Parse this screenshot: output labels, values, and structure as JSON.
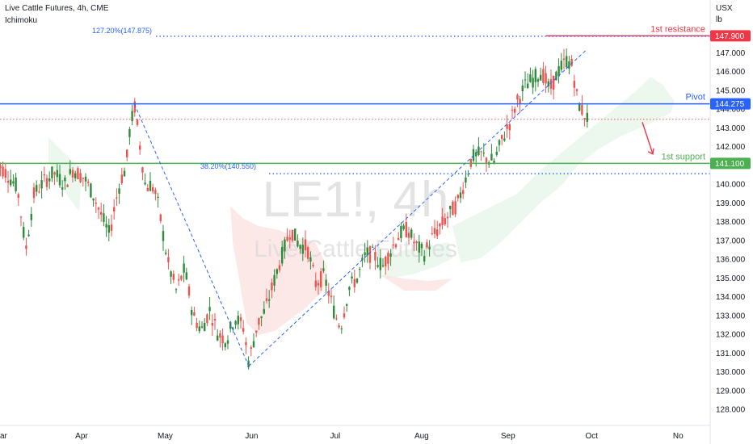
{
  "header": {
    "title": "Live Cattle Futures, 4h, CME",
    "indicator": "Ichimoku",
    "units": [
      "USX",
      "lb"
    ]
  },
  "watermark": {
    "symbol": "LE1!, 4h",
    "name": "Live Cattle Futures"
  },
  "colors": {
    "up": "#26a69a",
    "up_fill": "#2e8b3a",
    "down": "#ef5350",
    "pivot": "#2962ff",
    "support": "#4caf50",
    "resistance": "#f23645",
    "fib": "#2962ff",
    "cloud_green": "#e6f4e8",
    "cloud_red": "#fde2e2",
    "axis_text": "#131722"
  },
  "chart_data": {
    "type": "candlestick",
    "ylim": [
      127.2,
      148.3
    ],
    "y_ticks": [
      "128.000",
      "129.000",
      "130.000",
      "131.000",
      "132.000",
      "133.000",
      "134.000",
      "135.000",
      "136.000",
      "137.000",
      "138.000",
      "139.000",
      "140.000",
      "141.000",
      "142.000",
      "143.000",
      "144.000",
      "145.000",
      "146.000",
      "147.000"
    ],
    "x_ticks": [
      "ar",
      "Apr",
      "May",
      "Jun",
      "Jul",
      "Aug",
      "Sep",
      "Oct",
      "No"
    ],
    "levels": [
      {
        "label": "1st resistance",
        "value": 147.9,
        "tag": "147.900"
      },
      {
        "label": "Pivot",
        "value": 144.275,
        "tag": "144.275"
      },
      {
        "label": "1st support",
        "value": 141.1,
        "tag": "141.100"
      }
    ],
    "last_price": 143.45,
    "fib_labels": [
      {
        "text": "127.20%(147.875)",
        "value": 147.875
      },
      {
        "text": "38.20%(140.550)",
        "value": 140.55
      }
    ],
    "swing_points": [
      {
        "x": "Apr 20",
        "y": 144.25
      },
      {
        "x": "May 31",
        "y": 130.3
      },
      {
        "x": "Sep 23",
        "y": 146.85
      }
    ],
    "price_path": [
      [
        "Mar 1",
        141.2
      ],
      [
        "Mar 5",
        140.6
      ],
      [
        "Mar 9",
        139.8
      ],
      [
        "Mar 12",
        136.5
      ],
      [
        "Mar 15",
        139.5
      ],
      [
        "Mar 19",
        140.2
      ],
      [
        "Mar 22",
        140.6
      ],
      [
        "Mar 26",
        140.0
      ],
      [
        "Mar 29",
        140.8
      ],
      [
        "Apr 2",
        140.3
      ],
      [
        "Apr 5",
        139.5
      ],
      [
        "Apr 9",
        138.0
      ],
      [
        "Apr 11",
        137.3
      ],
      [
        "Apr 13",
        138.9
      ],
      [
        "Apr 15",
        140.2
      ],
      [
        "Apr 17",
        140.9
      ],
      [
        "Apr 18",
        142.6
      ],
      [
        "Apr 20",
        144.2
      ],
      [
        "Apr 22",
        142.0
      ],
      [
        "Apr 24",
        139.8
      ],
      [
        "Apr 26",
        140.0
      ],
      [
        "Apr 28",
        139.3
      ],
      [
        "May 2",
        135.8
      ],
      [
        "May 5",
        134.3
      ],
      [
        "May 8",
        135.5
      ],
      [
        "May 11",
        133.0
      ],
      [
        "May 14",
        132.2
      ],
      [
        "May 17",
        133.3
      ],
      [
        "May 20",
        132.0
      ],
      [
        "May 23",
        131.7
      ],
      [
        "May 26",
        132.9
      ],
      [
        "May 29",
        132.4
      ],
      [
        "May 31",
        130.5
      ],
      [
        "Jun 3",
        132.5
      ],
      [
        "Jun 6",
        133.3
      ],
      [
        "Jun 10",
        135.3
      ],
      [
        "Jun 13",
        136.7
      ],
      [
        "Jun 15",
        137.6
      ],
      [
        "Jun 18",
        136.8
      ],
      [
        "Jun 21",
        136.6
      ],
      [
        "Jun 24",
        134.7
      ],
      [
        "Jun 27",
        135.1
      ],
      [
        "Jul 1",
        133.0
      ],
      [
        "Jul 3",
        132.4
      ],
      [
        "Jul 6",
        134.5
      ],
      [
        "Jul 9",
        135.0
      ],
      [
        "Jul 12",
        136.3
      ],
      [
        "Jul 15",
        136.2
      ],
      [
        "Jul 18",
        135.6
      ],
      [
        "Jul 21",
        136.5
      ],
      [
        "Jul 24",
        137.3
      ],
      [
        "Jul 27",
        137.6
      ],
      [
        "Jul 30",
        136.7
      ],
      [
        "Aug 2",
        136.3
      ],
      [
        "Aug 5",
        137.2
      ],
      [
        "Aug 8",
        137.8
      ],
      [
        "Aug 11",
        138.4
      ],
      [
        "Aug 14",
        139.0
      ],
      [
        "Aug 17",
        140.4
      ],
      [
        "Aug 19",
        141.4
      ],
      [
        "Aug 22",
        141.6
      ],
      [
        "Aug 25",
        141.3
      ],
      [
        "Aug 27",
        141.2
      ],
      [
        "Aug 30",
        142.4
      ],
      [
        "Sep 2",
        143.4
      ],
      [
        "Sep 4",
        144.3
      ],
      [
        "Sep 7",
        145.2
      ],
      [
        "Sep 10",
        145.6
      ],
      [
        "Sep 13",
        146.0
      ],
      [
        "Sep 16",
        145.0
      ],
      [
        "Sep 19",
        146.0
      ],
      [
        "Sep 22",
        146.6
      ],
      [
        "Sep 24",
        146.3
      ],
      [
        "Sep 26",
        144.4
      ],
      [
        "Sep 28",
        143.8
      ],
      [
        "Sep 30",
        143.4
      ]
    ]
  }
}
